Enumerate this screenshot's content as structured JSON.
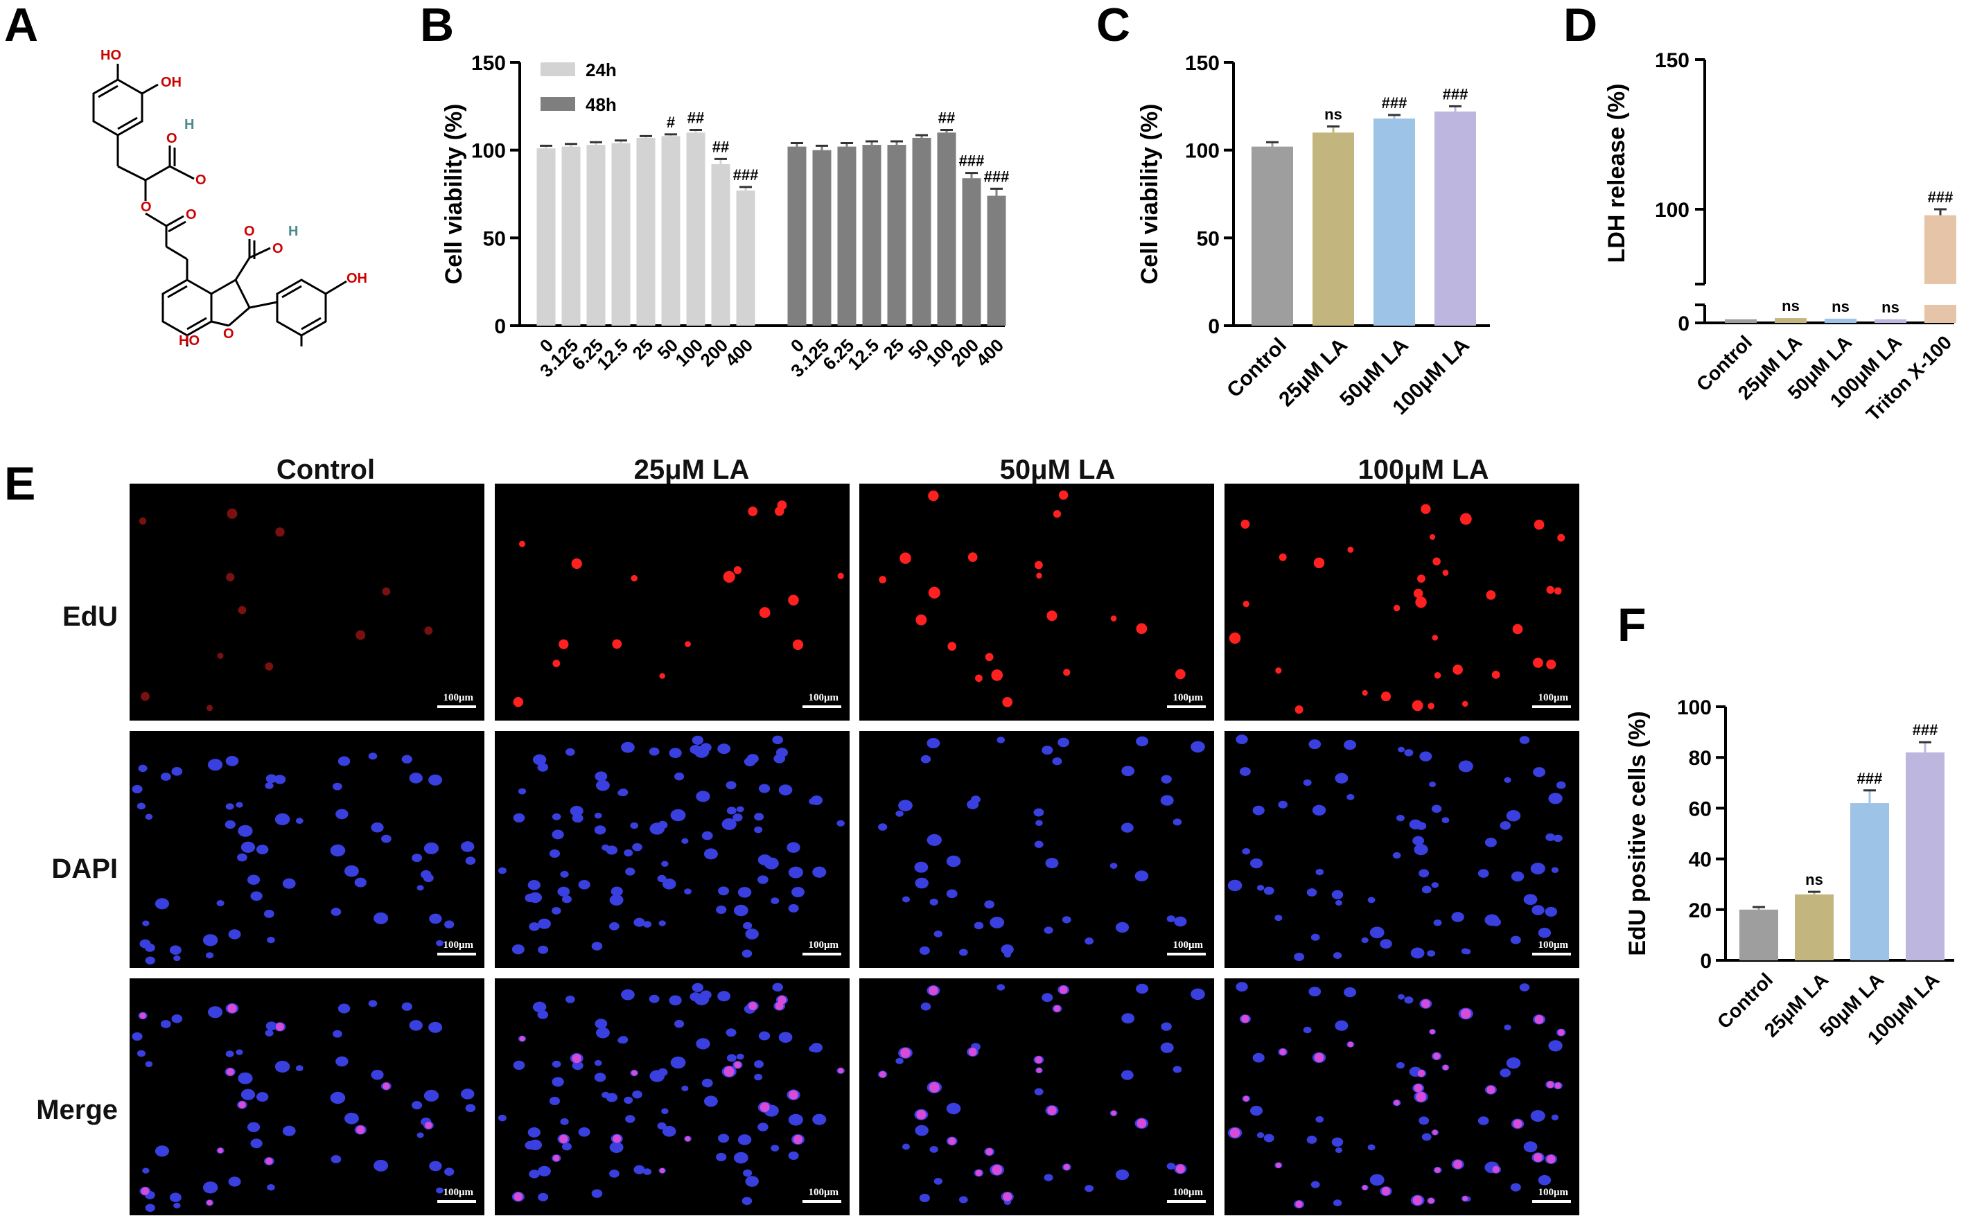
{
  "panels": {
    "A": "A",
    "B": "B",
    "C": "C",
    "D": "D",
    "E": "E",
    "F": "F"
  },
  "molecule": {
    "labels": [
      "HO",
      "OH",
      "O",
      "H",
      "O",
      "O",
      "O",
      "O",
      "H",
      "O",
      "O",
      "OH",
      "HO",
      "H",
      "H"
    ]
  },
  "chart_data": [
    {
      "panel": "B",
      "type": "bar",
      "ylabel": "Cell viability (%)",
      "ylim": [
        0,
        150
      ],
      "yticks": [
        "0",
        "50",
        "100",
        "150"
      ],
      "categories": [
        "0",
        "3.125",
        "6.25",
        "12.5",
        "25",
        "50",
        "100",
        "200",
        "400"
      ],
      "legend": [
        "24h",
        "48h"
      ],
      "series": [
        {
          "name": "24h",
          "color": "#d3d3d3",
          "values": [
            101,
            102,
            103,
            104,
            107,
            108,
            110,
            92,
            77
          ],
          "errors": [
            1.5,
            1.5,
            1.5,
            1.5,
            1,
            1,
            1.5,
            3,
            2
          ],
          "annotations": [
            "",
            "",
            "",
            "",
            "",
            "#",
            "##",
            "##",
            "###"
          ]
        },
        {
          "name": "48h",
          "color": "#7f7f7f",
          "values": [
            102,
            100,
            102,
            103,
            103,
            107,
            110,
            84,
            74
          ],
          "errors": [
            2,
            2.5,
            2,
            2,
            2,
            1.5,
            1.5,
            3,
            4
          ],
          "annotations": [
            "",
            "",
            "",
            "",
            "",
            "",
            "##",
            "###",
            "###"
          ]
        }
      ]
    },
    {
      "panel": "C",
      "type": "bar",
      "ylabel": "Cell viability (%)",
      "ylim": [
        0,
        150
      ],
      "yticks": [
        "0",
        "50",
        "100",
        "150"
      ],
      "categories": [
        "Control",
        "25μM LA",
        "50μM LA",
        "100μM LA"
      ],
      "values": [
        102,
        110,
        118,
        122
      ],
      "errors": [
        2.5,
        3.5,
        2,
        3
      ],
      "colors": [
        "#9e9e9e",
        "#c2b57e",
        "#9dc3e6",
        "#bdb7e0"
      ],
      "annotations": [
        "",
        "ns",
        "###",
        "###"
      ]
    },
    {
      "panel": "D",
      "type": "bar",
      "ylabel": "LDH release (%)",
      "yticks": [
        "0",
        "100",
        "150"
      ],
      "axis_break": true,
      "categories": [
        "Control",
        "25μM LA",
        "50μM LA",
        "100μM LA",
        "Triton X-100"
      ],
      "values": [
        3,
        4,
        3.5,
        3,
        98
      ],
      "errors": [
        0.5,
        0.5,
        0.5,
        0.5,
        2
      ],
      "colors": [
        "#9e9e9e",
        "#c2b57e",
        "#9dc3e6",
        "#bdb7e0",
        "#e6c4a8"
      ],
      "annotations": [
        "",
        "ns",
        "ns",
        "ns",
        "###"
      ]
    },
    {
      "panel": "F",
      "type": "bar",
      "ylabel": "EdU positive cells (%)",
      "ylim": [
        0,
        100
      ],
      "yticks": [
        "0",
        "20",
        "40",
        "60",
        "80",
        "100"
      ],
      "categories": [
        "Control",
        "25μM LA",
        "50μM LA",
        "100μM LA"
      ],
      "values": [
        20,
        26,
        62,
        82
      ],
      "errors": [
        1,
        1,
        5,
        4
      ],
      "colors": [
        "#9e9e9e",
        "#c2b57e",
        "#9dc3e6",
        "#bdb7e0"
      ],
      "annotations": [
        "",
        "ns",
        "###",
        "###"
      ]
    }
  ],
  "microscopy": {
    "columns": [
      "Control",
      "25μM LA",
      "50μM LA",
      "100μM LA"
    ],
    "rows": [
      "EdU",
      "DAPI",
      "Merge"
    ],
    "scale_bar": "100μm"
  }
}
